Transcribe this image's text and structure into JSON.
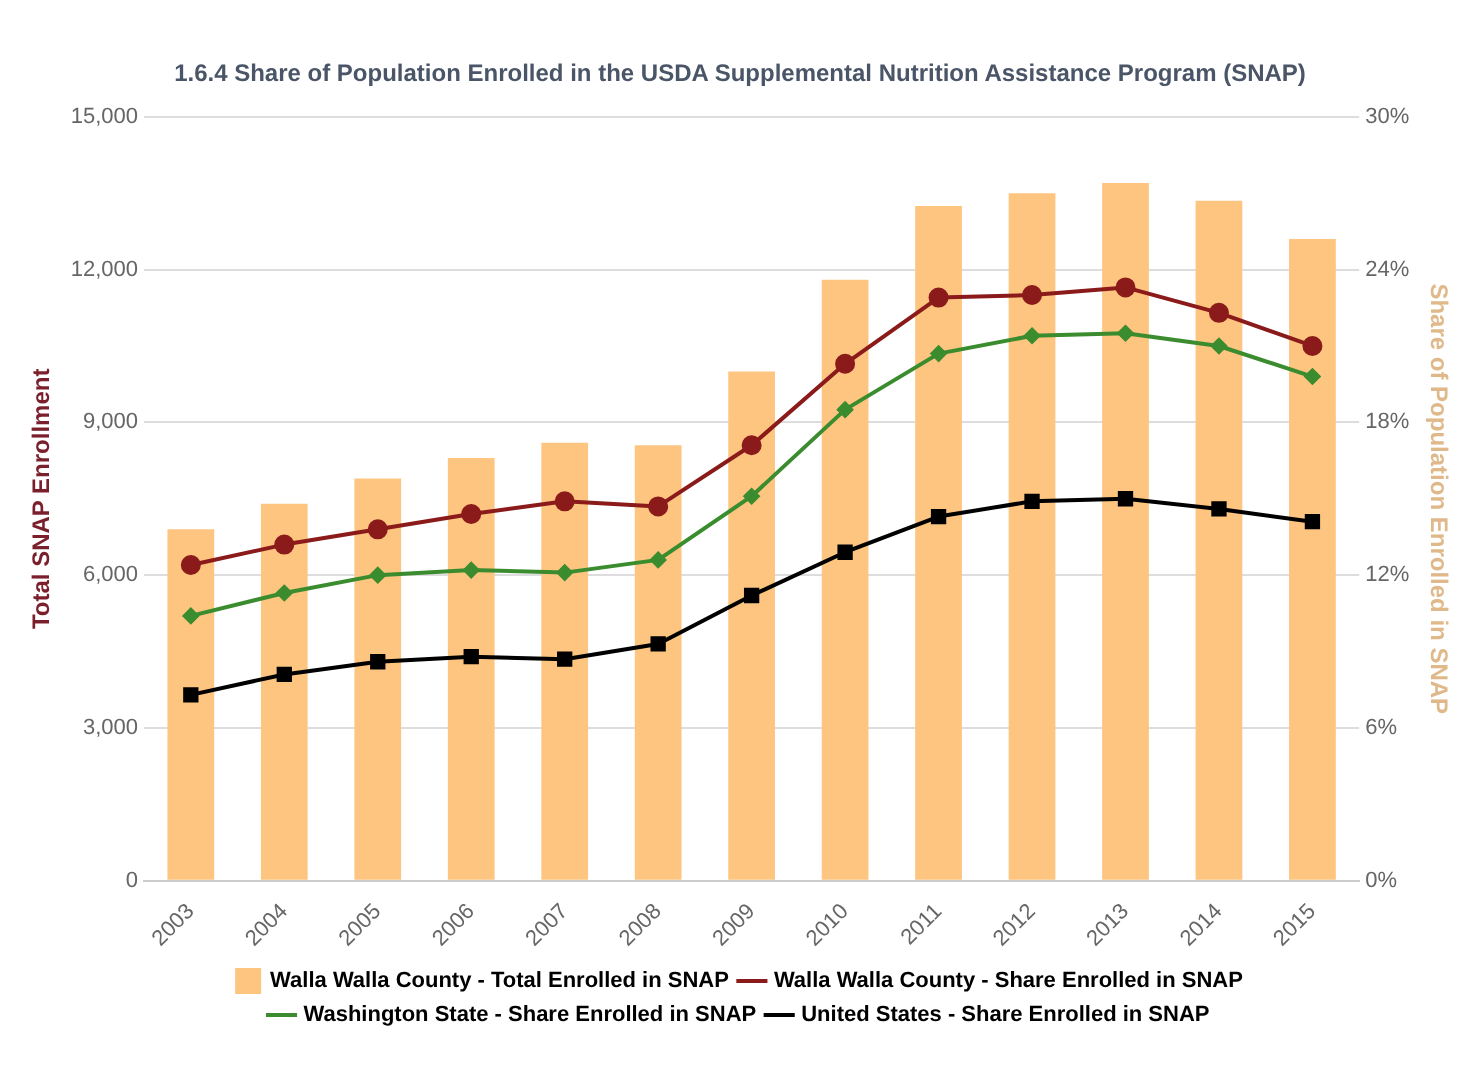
{
  "chart_data": {
    "type": "bar",
    "title": "1.6.4 Share of Population Enrolled in the USDA Supplemental Nutrition Assistance Program (SNAP)",
    "ylabel": "Total SNAP Enrollment",
    "y2label": "Share of Population Enrolled in SNAP",
    "categories": [
      "2003",
      "2004",
      "2005",
      "2006",
      "2007",
      "2008",
      "2009",
      "2010",
      "2011",
      "2012",
      "2013",
      "2014",
      "2015"
    ],
    "series": [
      {
        "name": "Walla Walla County - Total Enrolled in SNAP",
        "color": "#fdc57f",
        "values": [
          6900,
          7400,
          7900,
          8300,
          8600,
          8550,
          10000,
          11800,
          13250,
          13500,
          13700,
          13350,
          12600
        ]
      },
      {
        "name": "Walla Walla County - Share Enrolled in SNAP",
        "type": "line",
        "axis": "y2",
        "marker": "circle",
        "color": "#8b1a1a",
        "values": [
          12.4,
          13.2,
          13.8,
          14.4,
          14.9,
          14.7,
          17.1,
          20.3,
          22.9,
          23.0,
          23.3,
          22.3,
          21.0
        ]
      },
      {
        "name": "Washington State - Share Enrolled in SNAP",
        "type": "line",
        "axis": "y2",
        "marker": "diamond",
        "color": "#3a8c2e",
        "values": [
          10.4,
          11.3,
          12.0,
          12.2,
          12.1,
          12.6,
          15.1,
          18.5,
          20.7,
          21.4,
          21.5,
          21.0,
          19.8
        ]
      },
      {
        "name": "United States - Share Enrolled in SNAP",
        "type": "line",
        "axis": "y2",
        "marker": "square",
        "color": "#000000",
        "values": [
          7.3,
          8.1,
          8.6,
          8.8,
          8.7,
          9.3,
          11.2,
          12.9,
          14.3,
          14.9,
          15.0,
          14.6,
          14.1
        ]
      }
    ],
    "ylim": [
      0,
      15000
    ],
    "yticks": [
      0,
      {
        "value": 3000,
        "label": "3,000"
      },
      {
        "value": 6000,
        "label": "6,000"
      },
      {
        "value": 9000,
        "label": "9,000"
      },
      {
        "value": 12000,
        "label": "12,000"
      },
      {
        "value": 15000,
        "label": "15,000"
      }
    ],
    "y2lim": [
      0,
      30
    ],
    "y2ticks": [
      {
        "value": 0,
        "label": "0%"
      },
      {
        "value": 6,
        "label": "6%"
      },
      {
        "value": 12,
        "label": "12%"
      },
      {
        "value": 18,
        "label": "18%"
      },
      {
        "value": 24,
        "label": "24%"
      },
      {
        "value": 30,
        "label": "30%"
      }
    ],
    "grid": "y",
    "legend": "bottom"
  }
}
